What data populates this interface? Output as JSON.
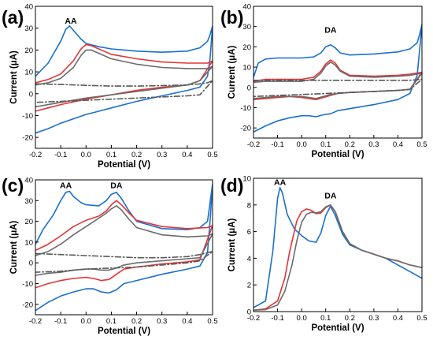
{
  "chart_data": [
    {
      "type": "line",
      "panel": "(a)",
      "xlabel": "Potential (V)",
      "ylabel": "Current (μA)",
      "xlim": [
        -0.2,
        0.5
      ],
      "ylim": [
        -25,
        40
      ],
      "xticks": [
        "-0.2",
        "-0.1",
        "0.0",
        "0.1",
        "0.2",
        "0.3",
        "0.4",
        "0.5"
      ],
      "yticks": [
        "-20",
        "-10",
        "0",
        "10",
        "20",
        "30",
        "40"
      ],
      "annotations": [
        {
          "text": "AA",
          "x": -0.06,
          "y": 32
        }
      ],
      "series": [
        {
          "color": "#1a6fd1",
          "dash": "solid",
          "x": [
            -0.2,
            -0.15,
            -0.1,
            -0.08,
            -0.065,
            -0.05,
            -0.02,
            0.0,
            0.05,
            0.1,
            0.15,
            0.2,
            0.3,
            0.4,
            0.45,
            0.48,
            0.49,
            0.495,
            0.5,
            0.49,
            0.48,
            0.45,
            0.4,
            0.3,
            0.2,
            0.1,
            0.0,
            -0.05,
            -0.1,
            -0.15,
            -0.2
          ],
          "y": [
            8,
            14,
            24,
            29.5,
            31,
            29,
            25,
            23,
            21.5,
            20.5,
            20,
            19.5,
            19,
            19.5,
            21,
            24,
            27,
            29,
            31,
            16,
            8,
            3,
            1.5,
            -1,
            -3.5,
            -6.5,
            -9.5,
            -11.5,
            -13.5,
            -16,
            -18
          ]
        },
        {
          "color": "#e53535",
          "dash": "solid",
          "x": [
            -0.2,
            -0.15,
            -0.1,
            -0.05,
            -0.02,
            0.0,
            0.02,
            0.05,
            0.1,
            0.2,
            0.3,
            0.4,
            0.48,
            0.5,
            0.45,
            0.4,
            0.3,
            0.2,
            0.1,
            0.0,
            -0.1,
            -0.15,
            -0.2
          ],
          "y": [
            5,
            6.5,
            9,
            15,
            20.5,
            22.5,
            22,
            20.5,
            18,
            16,
            14.5,
            14,
            14,
            15,
            6,
            4,
            3,
            1.5,
            -0.5,
            -2.5,
            -5,
            -6.5,
            -8
          ]
        },
        {
          "color": "#6b6b6b",
          "dash": "solid",
          "x": [
            -0.2,
            -0.15,
            -0.1,
            -0.05,
            -0.02,
            0.0,
            0.02,
            0.05,
            0.1,
            0.2,
            0.3,
            0.4,
            0.48,
            0.5,
            0.45,
            0.4,
            0.3,
            0.2,
            0.1,
            0.0,
            -0.1,
            -0.15,
            -0.2
          ],
          "y": [
            4,
            5,
            7,
            12,
            17.5,
            20,
            20,
            18.5,
            16,
            13.5,
            12,
            11.5,
            11.5,
            12.5,
            6,
            4,
            2.5,
            1,
            -0.5,
            -2,
            -4,
            -5,
            -6
          ]
        },
        {
          "color": "#5a5a5a",
          "dash": "dashdot",
          "x": [
            -0.2,
            -0.1,
            0.0,
            0.1,
            0.2,
            0.3,
            0.4,
            0.45,
            0.48,
            0.5,
            0.45,
            0.4,
            0.3,
            0.2,
            0.1,
            0.0,
            -0.1,
            -0.2
          ],
          "y": [
            4.5,
            4.2,
            3.8,
            3.5,
            3.5,
            3.7,
            4,
            4.5,
            5,
            6,
            -0.5,
            -1,
            -1.5,
            -2,
            -2.5,
            -3,
            -3.5,
            -4
          ]
        }
      ]
    },
    {
      "type": "line",
      "panel": "(b)",
      "xlabel": "Potential (V)",
      "ylabel": "Current (μA)",
      "xlim": [
        -0.2,
        0.5
      ],
      "ylim": [
        -25,
        40
      ],
      "xticks": [
        "-0.2",
        "-0.1",
        "0.0",
        "0.1",
        "0.2",
        "0.3",
        "0.4",
        "0.5"
      ],
      "yticks": [
        "-20",
        "-10",
        "0",
        "10",
        "20",
        "30",
        "40"
      ],
      "annotations": [
        {
          "text": "DA",
          "x": 0.12,
          "y": 27
        }
      ],
      "series": [
        {
          "color": "#1a6fd1",
          "dash": "solid",
          "x": [
            -0.2,
            -0.18,
            -0.15,
            -0.1,
            -0.05,
            0.0,
            0.05,
            0.08,
            0.1,
            0.12,
            0.14,
            0.16,
            0.2,
            0.3,
            0.4,
            0.45,
            0.48,
            0.49,
            0.5,
            0.49,
            0.48,
            0.45,
            0.4,
            0.3,
            0.2,
            0.15,
            0.12,
            0.09,
            0.06,
            0.03,
            0.0,
            -0.05,
            -0.1,
            -0.15,
            -0.2
          ],
          "y": [
            5,
            12,
            14,
            14.5,
            14.5,
            14.5,
            15,
            17,
            20,
            21,
            19.5,
            17,
            16,
            16.5,
            17.5,
            19,
            22,
            26,
            31,
            18,
            6,
            -3,
            -6,
            -8.5,
            -10.5,
            -11.5,
            -13,
            -13.5,
            -14.5,
            -14,
            -14,
            -15,
            -16.5,
            -19,
            -22
          ]
        },
        {
          "color": "#e53535",
          "dash": "solid",
          "x": [
            -0.2,
            -0.15,
            -0.1,
            -0.05,
            0.0,
            0.05,
            0.08,
            0.1,
            0.12,
            0.14,
            0.16,
            0.2,
            0.3,
            0.4,
            0.45,
            0.5,
            0.45,
            0.4,
            0.3,
            0.2,
            0.15,
            0.12,
            0.09,
            0.06,
            0.03,
            0.0,
            -0.05,
            -0.1,
            -0.15,
            -0.2
          ],
          "y": [
            3,
            4,
            4,
            4,
            4,
            5,
            8,
            11.5,
            13.5,
            12,
            8.5,
            6,
            5.5,
            6,
            6.5,
            7.5,
            -1,
            -1.5,
            -2,
            -2.5,
            -3,
            -4,
            -5,
            -6,
            -5.5,
            -5,
            -4.5,
            -5,
            -5.5,
            -6
          ]
        },
        {
          "color": "#6b6b6b",
          "dash": "solid",
          "x": [
            -0.2,
            -0.15,
            -0.1,
            -0.05,
            0.0,
            0.05,
            0.08,
            0.1,
            0.12,
            0.14,
            0.16,
            0.2,
            0.3,
            0.4,
            0.45,
            0.5,
            0.45,
            0.4,
            0.3,
            0.2,
            0.15,
            0.12,
            0.09,
            0.06,
            0.03,
            0.0,
            -0.05,
            -0.1,
            -0.15,
            -0.2
          ],
          "y": [
            2.5,
            3,
            3,
            3,
            3,
            4,
            7,
            10.5,
            12.5,
            11,
            8,
            5.5,
            5,
            5.5,
            6,
            7,
            -1,
            -1.5,
            -2,
            -2.5,
            -3,
            -3.5,
            -4.5,
            -5.5,
            -5,
            -4.5,
            -4.5,
            -4.5,
            -5,
            -5.5
          ]
        },
        {
          "color": "#5a5a5a",
          "dash": "dashdot",
          "x": [
            -0.2,
            -0.1,
            0.0,
            0.1,
            0.2,
            0.3,
            0.4,
            0.45,
            0.5,
            0.45,
            0.4,
            0.3,
            0.2,
            0.1,
            0.0,
            -0.1,
            -0.2
          ],
          "y": [
            3.5,
            3.5,
            3.5,
            3.5,
            3.5,
            3.5,
            3.5,
            3.5,
            4,
            -1,
            -1.5,
            -2,
            -2.5,
            -3,
            -3.5,
            -4,
            -4.5
          ]
        }
      ]
    },
    {
      "type": "line",
      "panel": "(c)",
      "xlabel": "Potential (V)",
      "ylabel": "Current (μA)",
      "xlim": [
        -0.2,
        0.5
      ],
      "ylim": [
        -25,
        40
      ],
      "xticks": [
        "-0.2",
        "-0.1",
        "0.0",
        "0.1",
        "0.2",
        "0.3",
        "0.4",
        "0.5"
      ],
      "yticks": [
        "-20",
        "-10",
        "0",
        "10",
        "20",
        "30",
        "40"
      ],
      "annotations": [
        {
          "text": "AA",
          "x": -0.08,
          "y": 36
        },
        {
          "text": "DA",
          "x": 0.12,
          "y": 36
        }
      ],
      "series": [
        {
          "color": "#1a6fd1",
          "dash": "solid",
          "x": [
            -0.2,
            -0.17,
            -0.13,
            -0.1,
            -0.08,
            -0.065,
            -0.05,
            -0.02,
            0.0,
            0.05,
            0.08,
            0.1,
            0.12,
            0.14,
            0.17,
            0.2,
            0.3,
            0.4,
            0.45,
            0.48,
            0.5,
            0.49,
            0.48,
            0.45,
            0.4,
            0.3,
            0.2,
            0.15,
            0.12,
            0.09,
            0.06,
            0.03,
            0.0,
            -0.05,
            -0.1,
            -0.15,
            -0.2
          ],
          "y": [
            9,
            16,
            23,
            30,
            34,
            34.5,
            32,
            29,
            28,
            27.5,
            30,
            33,
            34,
            31,
            25,
            20,
            16.5,
            16,
            17,
            20,
            38,
            20,
            5,
            -1.5,
            -3,
            -5.5,
            -8.5,
            -10,
            -13,
            -14.5,
            -14,
            -12.5,
            -12.5,
            -14,
            -16,
            -19,
            -23
          ]
        },
        {
          "color": "#e53535",
          "dash": "solid",
          "x": [
            -0.2,
            -0.15,
            -0.1,
            -0.05,
            0.0,
            0.05,
            0.08,
            0.1,
            0.12,
            0.14,
            0.17,
            0.2,
            0.3,
            0.4,
            0.48,
            0.5,
            0.45,
            0.4,
            0.3,
            0.2,
            0.15,
            0.12,
            0.09,
            0.06,
            0.03,
            0.0,
            -0.05,
            -0.1,
            -0.15,
            -0.2
          ],
          "y": [
            6,
            9,
            13,
            17.5,
            20.5,
            22.5,
            25,
            28,
            30,
            28,
            24,
            20.5,
            17.5,
            16.5,
            17,
            18,
            1.5,
            0.5,
            -0.5,
            -2,
            -3,
            -5.5,
            -8,
            -8.5,
            -7.5,
            -7,
            -7.5,
            -8.5,
            -10,
            -12
          ]
        },
        {
          "color": "#6b6b6b",
          "dash": "solid",
          "x": [
            -0.2,
            -0.15,
            -0.1,
            -0.05,
            0.0,
            0.05,
            0.08,
            0.1,
            0.12,
            0.14,
            0.17,
            0.2,
            0.3,
            0.4,
            0.48,
            0.5,
            0.45,
            0.4,
            0.3,
            0.2,
            0.15,
            0.12,
            0.09,
            0.06,
            0.03,
            0.0,
            -0.05,
            -0.1,
            -0.15,
            -0.2
          ],
          "y": [
            3.5,
            5.5,
            9,
            13.5,
            17.5,
            21.5,
            24,
            26,
            27.5,
            25.5,
            21,
            17,
            13.5,
            12.5,
            13,
            14,
            2.5,
            2,
            1,
            0,
            -1,
            -2.5,
            -3.5,
            -3.5,
            -3,
            -3,
            -3.5,
            -4.5,
            -5,
            -6
          ]
        },
        {
          "color": "#5a5a5a",
          "dash": "dashdot",
          "x": [
            -0.2,
            -0.1,
            0.0,
            0.1,
            0.2,
            0.3,
            0.4,
            0.45,
            0.5,
            0.45,
            0.4,
            0.3,
            0.2,
            0.1,
            0.0,
            -0.1,
            -0.2
          ],
          "y": [
            4.5,
            4,
            3.5,
            3,
            2.5,
            2.5,
            3,
            4,
            5.5,
            1,
            0,
            -1,
            -2,
            -2.5,
            -3,
            -4,
            -4.5
          ]
        }
      ]
    },
    {
      "type": "line",
      "panel": "(d)",
      "xlabel": "Potential (V)",
      "ylabel": "Current (μA)",
      "xlim": [
        -0.2,
        0.5
      ],
      "ylim": [
        0,
        10
      ],
      "xticks": [
        "-0.2",
        "-0.1",
        "0.0",
        "0.1",
        "0.2",
        "0.3",
        "0.4",
        "0.5"
      ],
      "yticks": [
        "0",
        "2",
        "4",
        "6",
        "8",
        "10"
      ],
      "annotations": [
        {
          "text": "AA",
          "x": -0.09,
          "y": 9.5
        },
        {
          "text": "DA",
          "x": 0.12,
          "y": 8.5
        }
      ],
      "series": [
        {
          "color": "#1a6fd1",
          "dash": "solid",
          "x": [
            -0.2,
            -0.15,
            -0.12,
            -0.1,
            -0.09,
            -0.08,
            -0.06,
            -0.03,
            0.0,
            0.03,
            0.06,
            0.08,
            0.1,
            0.12,
            0.14,
            0.17,
            0.2,
            0.25,
            0.3,
            0.35,
            0.4,
            0.45,
            0.5
          ],
          "y": [
            0.3,
            0.8,
            4.5,
            8.5,
            9.3,
            8.9,
            7.3,
            6.2,
            5.7,
            5.3,
            5.2,
            5.9,
            7.2,
            7.9,
            7.2,
            5.8,
            5.0,
            4.6,
            4.3,
            4.0,
            3.5,
            3.0,
            2.5
          ]
        },
        {
          "color": "#e53535",
          "dash": "solid",
          "x": [
            -0.2,
            -0.15,
            -0.1,
            -0.07,
            -0.05,
            -0.02,
            0.0,
            0.02,
            0.04,
            0.06,
            0.08,
            0.1,
            0.12,
            0.14,
            0.17,
            0.2,
            0.25,
            0.3,
            0.35,
            0.4,
            0.45,
            0.5
          ],
          "y": [
            0.1,
            0.2,
            0.8,
            2.5,
            4.5,
            6.8,
            7.5,
            7.7,
            7.6,
            7.35,
            7.4,
            7.8,
            8.0,
            7.5,
            6.0,
            5.1,
            4.6,
            4.3,
            4.0,
            3.8,
            3.5,
            3.3
          ]
        },
        {
          "color": "#6b6b6b",
          "dash": "solid",
          "x": [
            -0.2,
            -0.15,
            -0.1,
            -0.07,
            -0.04,
            -0.02,
            0.0,
            0.02,
            0.04,
            0.06,
            0.08,
            0.1,
            0.12,
            0.14,
            0.17,
            0.2,
            0.25,
            0.3,
            0.35,
            0.4,
            0.45,
            0.5
          ],
          "y": [
            0.1,
            0.15,
            0.5,
            1.5,
            3.5,
            5.3,
            6.7,
            7.3,
            7.45,
            7.4,
            7.5,
            7.85,
            8.0,
            7.5,
            6.0,
            5.1,
            4.6,
            4.3,
            4.0,
            3.8,
            3.5,
            3.3
          ]
        }
      ]
    }
  ]
}
